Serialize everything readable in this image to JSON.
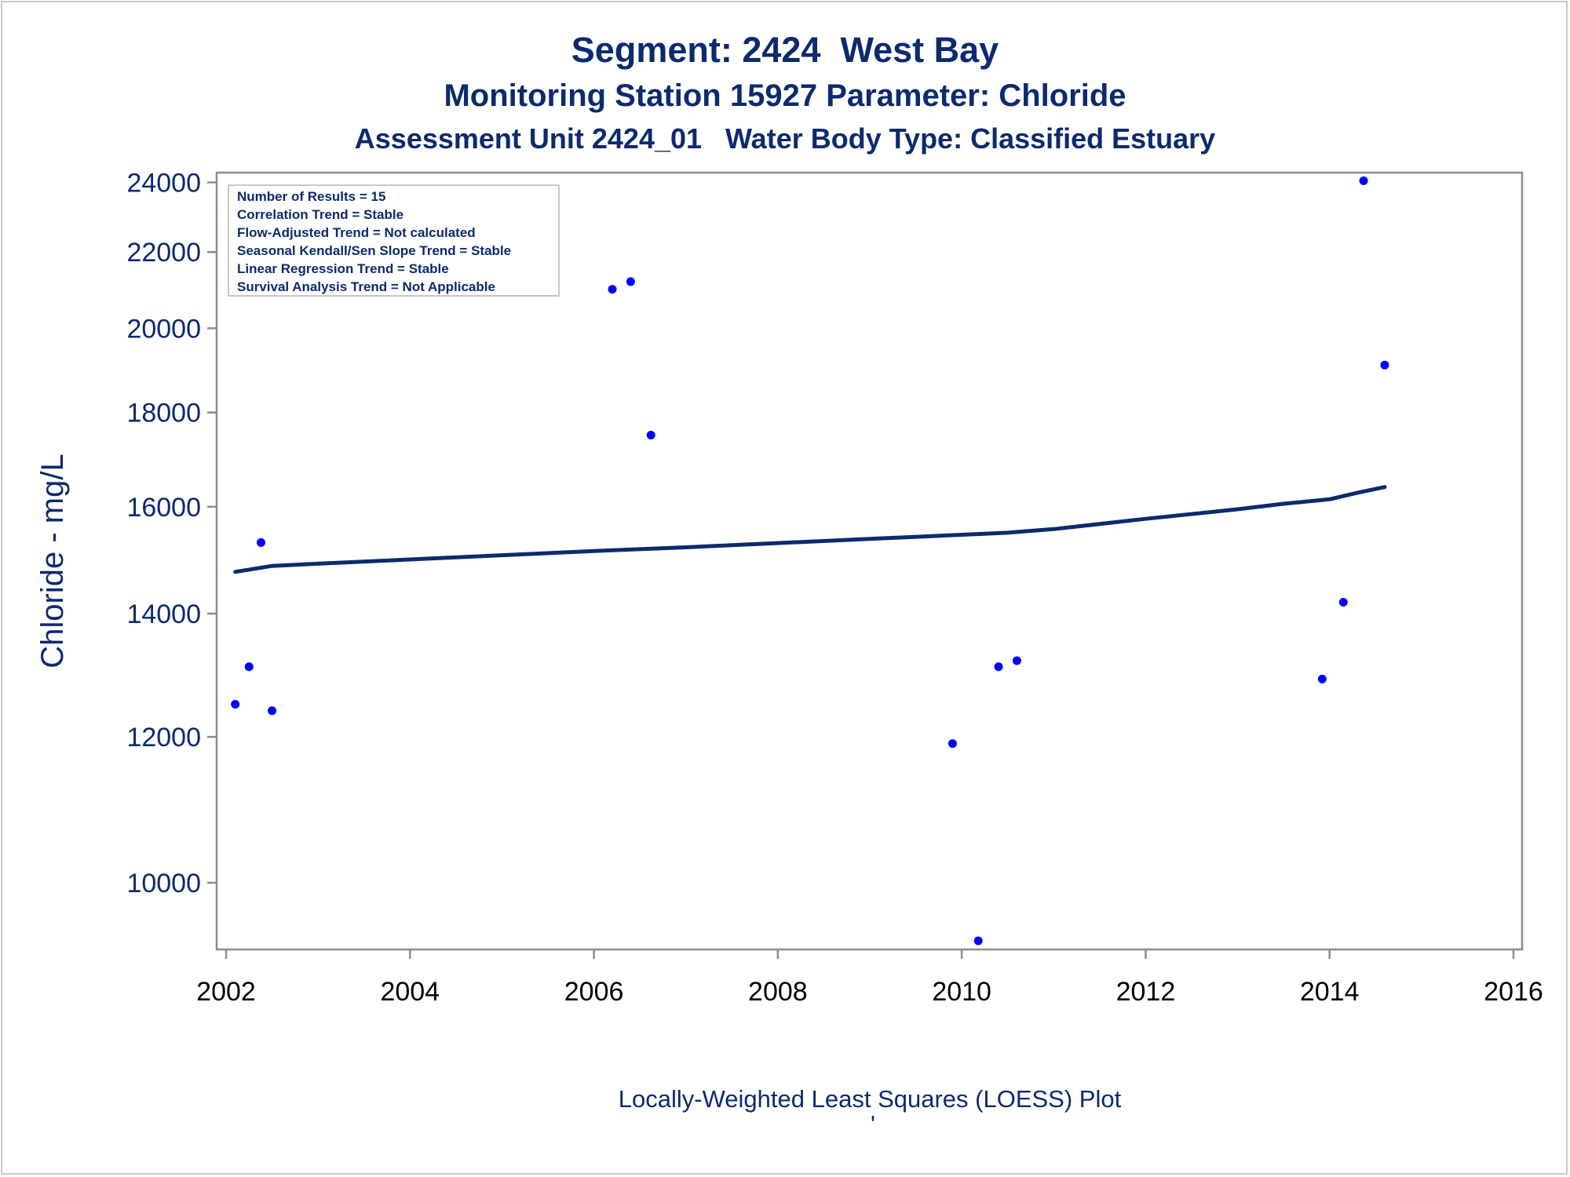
{
  "titles": {
    "line1": "Segment: 2424  West Bay",
    "line2": "Monitoring Station 15927 Parameter: Chloride",
    "line3": "Assessment Unit 2424_01   Water Body Type: Classified Estuary"
  },
  "colors": {
    "text": "#0c2a6e",
    "points": "#0000ff",
    "loess": "#0c2a6e",
    "axes": "#8c8c8c"
  },
  "stats_box": [
    "Number of Results = 15",
    "Correlation Trend = Stable",
    "Flow-Adjusted Trend = Not calculated",
    "Seasonal Kendall/Sen Slope Trend = Stable",
    "Linear Regression Trend = Stable",
    "Survival Analysis Trend = Not Applicable"
  ],
  "footnote": "Locally-Weighted Least Squares (LOESS) Plot",
  "footnote_mark": "'",
  "chart_data": {
    "type": "scatter",
    "ylabel": "Chloride - mg/L",
    "xlabel": "",
    "y_scale": "log",
    "xlim": [
      2002,
      2016
    ],
    "ylim": [
      9200,
      24200
    ],
    "x_ticks": [
      2002,
      2004,
      2006,
      2008,
      2010,
      2012,
      2014,
      2016
    ],
    "y_ticks": [
      10000,
      12000,
      14000,
      16000,
      18000,
      20000,
      22000,
      24000
    ],
    "legend": "top-left",
    "grid": false,
    "series": [
      {
        "type": "scatter",
        "x": [
          2002.1,
          2002.25,
          2002.38,
          2002.5,
          2006.2,
          2006.4,
          2006.62,
          2009.9,
          2010.18,
          2010.4,
          2010.6,
          2013.92,
          2014.15,
          2014.37,
          2014.6
        ],
        "y": [
          12500,
          13100,
          15300,
          12400,
          21000,
          21200,
          17500,
          11900,
          9300,
          13100,
          13200,
          12900,
          14200,
          24050,
          19100
        ]
      },
      {
        "type": "line",
        "x": [
          2002.1,
          2002.5,
          2003,
          2004,
          2005,
          2006,
          2007,
          2008,
          2009,
          2010,
          2010.5,
          2011,
          2012,
          2013,
          2013.5,
          2014,
          2014.3,
          2014.6
        ],
        "y": [
          14750,
          14860,
          14900,
          14980,
          15060,
          15140,
          15210,
          15290,
          15370,
          15450,
          15490,
          15560,
          15760,
          15950,
          16060,
          16150,
          16280,
          16400
        ]
      }
    ]
  }
}
